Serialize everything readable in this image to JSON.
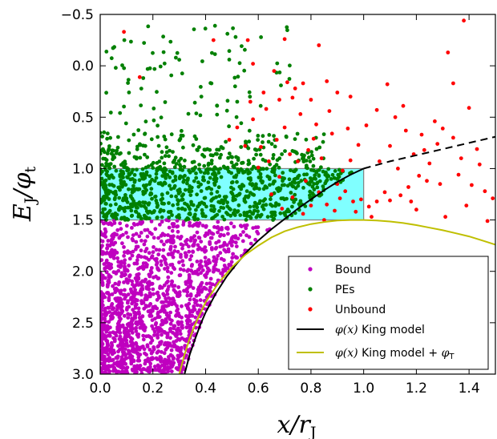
{
  "chart_data": {
    "type": "scatter",
    "title": "",
    "xlabel": {
      "main": "x/r",
      "sub": "J"
    },
    "ylabel": {
      "main": "E",
      "sub1": "J",
      "mid": "/φ",
      "sub2": "t"
    },
    "xlim": [
      0.0,
      1.5
    ],
    "ylim": [
      -0.5,
      3.0
    ],
    "y_inverted": true,
    "x_ticks": [
      "0.0",
      "0.2",
      "0.4",
      "0.6",
      "0.8",
      "1.0",
      "1.2",
      "1.4"
    ],
    "x_tick_values": [
      0.0,
      0.2,
      0.4,
      0.6,
      0.8,
      1.0,
      1.2,
      1.4
    ],
    "y_ticks": [
      "−0.5",
      "0.0",
      "0.5",
      "1.0",
      "1.5",
      "2.0",
      "2.5",
      "3.0"
    ],
    "y_tick_values": [
      -0.5,
      0.0,
      0.5,
      1.0,
      1.5,
      2.0,
      2.5,
      3.0
    ],
    "grid": false,
    "legend_position": "lower-right",
    "band": {
      "x": [
        0.0,
        1.0
      ],
      "y": [
        1.0,
        1.5
      ],
      "color": "#80ffff"
    },
    "series": [
      {
        "name": "Bound",
        "kind": "points",
        "color": "#bf00bf"
      },
      {
        "name": "PEs",
        "kind": "points",
        "color": "#008000"
      },
      {
        "name": "Unbound",
        "kind": "points",
        "color": "#ff0000"
      },
      {
        "name": "King model",
        "name_math": "φ(x)",
        "kind": "line",
        "color": "#000000",
        "x": [
          0.32,
          0.34,
          0.36,
          0.38,
          0.4,
          0.44,
          0.48,
          0.52,
          0.56,
          0.6,
          0.65,
          0.7,
          0.75,
          0.8,
          0.85,
          0.9,
          0.95,
          1.0
        ],
        "y": [
          3.0,
          2.81,
          2.66,
          2.52,
          2.4,
          2.21,
          2.05,
          1.92,
          1.8,
          1.7,
          1.59,
          1.49,
          1.39,
          1.3,
          1.21,
          1.13,
          1.06,
          1.0
        ],
        "dashed_x": [
          1.0,
          1.1,
          1.2,
          1.3,
          1.4,
          1.5
        ],
        "dashed_y": [
          1.0,
          0.93,
          0.87,
          0.81,
          0.75,
          0.69
        ]
      },
      {
        "name": "King model + ",
        "name_math": "φ(x)",
        "name_suffix_math": "φ",
        "name_suffix_sub": "T",
        "kind": "line",
        "color": "#bfbf00",
        "x": [
          0.3,
          0.32,
          0.34,
          0.36,
          0.38,
          0.4,
          0.45,
          0.5,
          0.55,
          0.6,
          0.65,
          0.7,
          0.75,
          0.8,
          0.85,
          0.9,
          0.95,
          1.0,
          1.05,
          1.1,
          1.15,
          1.2,
          1.25,
          1.3,
          1.35,
          1.4,
          1.45,
          1.5
        ],
        "y": [
          3.0,
          2.81,
          2.65,
          2.52,
          2.41,
          2.3,
          2.11,
          1.96,
          1.84,
          1.75,
          1.67,
          1.61,
          1.57,
          1.54,
          1.52,
          1.505,
          1.5,
          1.5,
          1.505,
          1.515,
          1.53,
          1.55,
          1.575,
          1.6,
          1.63,
          1.66,
          1.7,
          1.74
        ]
      }
    ],
    "unbound_points": [
      [
        0.09,
        -0.33
      ],
      [
        0.15,
        0.11
      ],
      [
        0.43,
        -0.25
      ],
      [
        0.56,
        -0.25
      ],
      [
        0.7,
        -0.26
      ],
      [
        0.83,
        -0.2
      ],
      [
        0.58,
        -0.02
      ],
      [
        0.62,
        0.26
      ],
      [
        0.68,
        0.33
      ],
      [
        0.73,
        0.31
      ],
      [
        0.77,
        0.17
      ],
      [
        0.8,
        0.33
      ],
      [
        0.86,
        0.15
      ],
      [
        0.9,
        0.26
      ],
      [
        0.95,
        0.3
      ],
      [
        1.05,
        0.43
      ],
      [
        1.12,
        0.5
      ],
      [
        1.22,
        0.67
      ],
      [
        1.28,
        0.76
      ],
      [
        1.32,
        -0.13
      ],
      [
        1.34,
        0.17
      ],
      [
        1.38,
        -0.44
      ],
      [
        1.4,
        0.41
      ],
      [
        1.43,
        0.81
      ],
      [
        1.46,
        1.22
      ],
      [
        1.47,
        1.51
      ],
      [
        1.49,
        1.29
      ],
      [
        1.3,
        0.61
      ],
      [
        1.25,
        0.95
      ],
      [
        1.21,
        1.07
      ],
      [
        1.17,
        1.18
      ],
      [
        1.14,
        1.26
      ],
      [
        1.1,
        1.31
      ],
      [
        1.08,
        1.23
      ],
      [
        1.05,
        1.32
      ],
      [
        1.02,
        1.37
      ],
      [
        0.99,
        1.3
      ],
      [
        0.96,
        1.32
      ],
      [
        0.93,
        1.22
      ],
      [
        0.91,
        1.29
      ],
      [
        0.89,
        1.41
      ],
      [
        0.86,
        1.35
      ],
      [
        0.83,
        1.23
      ],
      [
        0.8,
        1.36
      ],
      [
        0.78,
        1.12
      ],
      [
        0.75,
        0.93
      ],
      [
        0.72,
        0.86
      ],
      [
        0.7,
        0.6
      ],
      [
        0.67,
        0.72
      ],
      [
        0.64,
        0.93
      ],
      [
        0.61,
        0.79
      ],
      [
        0.58,
        0.52
      ],
      [
        0.55,
        0.78
      ],
      [
        0.52,
        0.6
      ],
      [
        1.1,
        0.78
      ],
      [
        1.16,
        0.63
      ],
      [
        1.19,
        0.86
      ],
      [
        1.24,
        1.12
      ],
      [
        1.29,
        1.15
      ],
      [
        1.36,
        1.06
      ],
      [
        1.44,
        0.96
      ],
      [
        1.39,
        1.36
      ],
      [
        1.27,
        0.54
      ],
      [
        1.09,
        0.18
      ],
      [
        1.01,
        0.58
      ],
      [
        0.94,
        0.61
      ],
      [
        0.88,
        0.66
      ],
      [
        0.84,
        0.9
      ],
      [
        0.81,
        0.71
      ],
      [
        0.76,
        0.47
      ],
      [
        0.74,
        0.22
      ],
      [
        0.66,
        0.05
      ],
      [
        0.63,
        0.42
      ],
      [
        0.49,
        0.72
      ],
      [
        1.34,
        0.7
      ],
      [
        1.41,
        1.16
      ],
      [
        1.18,
        1.32
      ],
      [
        1.13,
        1.0
      ],
      [
        1.03,
        1.47
      ],
      [
        0.97,
        1.42
      ],
      [
        0.92,
        1.02
      ],
      [
        0.87,
        0.44
      ],
      [
        0.82,
        0.57
      ],
      [
        0.79,
        0.82
      ],
      [
        0.71,
        0.16
      ],
      [
        0.68,
        1.08
      ],
      [
        0.65,
        1.25
      ],
      [
        0.6,
        0.99
      ],
      [
        0.57,
        0.35
      ],
      [
        1.2,
        1.4
      ],
      [
        1.06,
        0.93
      ],
      [
        0.98,
        0.77
      ],
      [
        0.95,
        0.92
      ],
      [
        0.9,
        1.15
      ],
      [
        1.15,
        0.39
      ],
      [
        1.23,
        0.82
      ],
      [
        1.37,
        0.9
      ],
      [
        1.31,
        1.47
      ],
      [
        0.85,
        1.5
      ],
      [
        0.77,
        1.44
      ],
      [
        0.73,
        1.28
      ],
      [
        0.69,
        1.39
      ]
    ]
  },
  "legend": {
    "bound": "Bound",
    "pes": "PEs",
    "unbound": "Unbound",
    "king_math": "φ(x)",
    "king_text": " King model",
    "king_t_math": "φ(x)",
    "king_t_text": " King model + ",
    "king_t_suffix": "φ",
    "king_t_suffix_sub": "T"
  }
}
